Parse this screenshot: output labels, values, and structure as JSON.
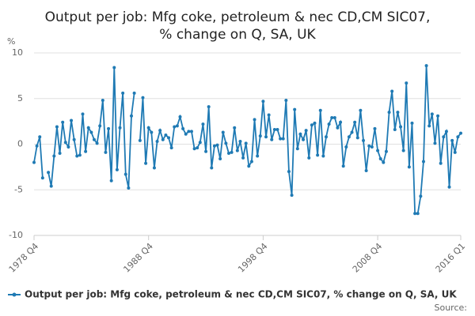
{
  "chart_data": {
    "type": "line",
    "title": [
      "Output per job: Mfg coke, petroleum & nec CD,CM SIC07,",
      "% change on Q, SA, UK"
    ],
    "y_unit": "%",
    "source_label": "Source:",
    "categories": [
      "1978 Q4",
      null,
      null,
      null,
      null,
      null,
      null,
      null,
      null,
      null,
      null,
      null,
      null,
      null,
      null,
      null,
      null,
      null,
      null,
      null,
      null,
      null,
      null,
      null,
      null,
      null,
      null,
      null,
      null,
      null,
      null,
      null,
      null,
      null,
      null,
      null,
      null,
      null,
      null,
      null,
      "1988 Q4",
      null,
      null,
      null,
      null,
      null,
      null,
      null,
      null,
      null,
      null,
      null,
      null,
      null,
      null,
      null,
      null,
      null,
      null,
      null,
      null,
      null,
      null,
      null,
      null,
      null,
      null,
      null,
      null,
      null,
      null,
      null,
      null,
      null,
      null,
      null,
      null,
      null,
      null,
      null,
      "1998 Q4",
      null,
      null,
      null,
      null,
      null,
      null,
      null,
      null,
      null,
      null,
      null,
      null,
      null,
      null,
      null,
      null,
      null,
      null,
      null,
      null,
      null,
      null,
      null,
      null,
      null,
      null,
      null,
      null,
      null,
      null,
      null,
      null,
      null,
      null,
      null,
      null,
      null,
      null,
      null,
      "2008 Q4",
      null,
      null,
      null,
      null,
      null,
      null,
      null,
      null,
      null,
      null,
      null,
      null,
      null,
      null,
      null,
      null,
      null,
      null,
      null,
      null,
      null,
      null,
      null,
      null,
      null,
      null,
      null,
      null,
      "2016 Q1"
    ],
    "series": [
      {
        "name": "Output per job: Mfg coke, petroleum & nec CD,CM SIC07, % change on Q, SA, UK",
        "color": "#1f7ab4",
        "values": [
          -2.0,
          -0.2,
          0.8,
          -3.7,
          null,
          -3.1,
          -4.6,
          -1.3,
          1.9,
          -1.0,
          2.4,
          0.2,
          -0.3,
          2.6,
          0.5,
          -1.3,
          -1.2,
          3.3,
          -0.8,
          1.8,
          1.3,
          0.5,
          0.1,
          2.0,
          4.8,
          -0.9,
          1.7,
          -4.0,
          8.4,
          -2.8,
          1.8,
          5.6,
          -3.3,
          -4.8,
          3.1,
          5.6,
          null,
          0.4,
          5.1,
          -2.1,
          1.8,
          1.3,
          -2.6,
          0.3,
          1.5,
          0.5,
          1.0,
          0.7,
          -0.4,
          1.9,
          2.0,
          3.0,
          1.7,
          1.1,
          1.4,
          1.4,
          -0.5,
          -0.4,
          0.2,
          2.2,
          -0.8,
          4.1,
          -2.6,
          -0.2,
          -0.1,
          -1.6,
          1.3,
          0.1,
          -1.0,
          -0.9,
          1.8,
          -0.7,
          0.3,
          -1.5,
          0.1,
          -2.4,
          -1.9,
          2.7,
          -1.3,
          0.9,
          4.7,
          0.8,
          3.2,
          0.5,
          1.6,
          1.6,
          0.6,
          0.6,
          4.8,
          -3.0,
          -5.6,
          3.8,
          -0.5,
          1.1,
          0.5,
          1.5,
          -1.5,
          2.1,
          2.3,
          -1.2,
          3.7,
          -1.3,
          0.8,
          2.2,
          2.9,
          2.9,
          1.8,
          2.4,
          -2.4,
          -0.3,
          0.8,
          1.3,
          2.4,
          0.7,
          3.7,
          0.4,
          -2.9,
          -0.2,
          -0.3,
          1.7,
          -0.7,
          -1.6,
          -2.0,
          -0.8,
          3.5,
          5.8,
          1.6,
          3.5,
          1.9,
          -0.7,
          6.7,
          -2.5,
          2.3,
          -7.6,
          -7.6,
          -5.7,
          -1.9,
          8.6,
          2.0,
          3.3,
          0.1,
          3.1,
          -2.1,
          0.8,
          1.4,
          -4.7,
          0.4,
          -0.9,
          0.8,
          1.2
        ]
      }
    ],
    "ylim": [
      -10,
      10
    ],
    "yticks": [
      -10,
      -5,
      0,
      5,
      10
    ],
    "grid": true
  }
}
